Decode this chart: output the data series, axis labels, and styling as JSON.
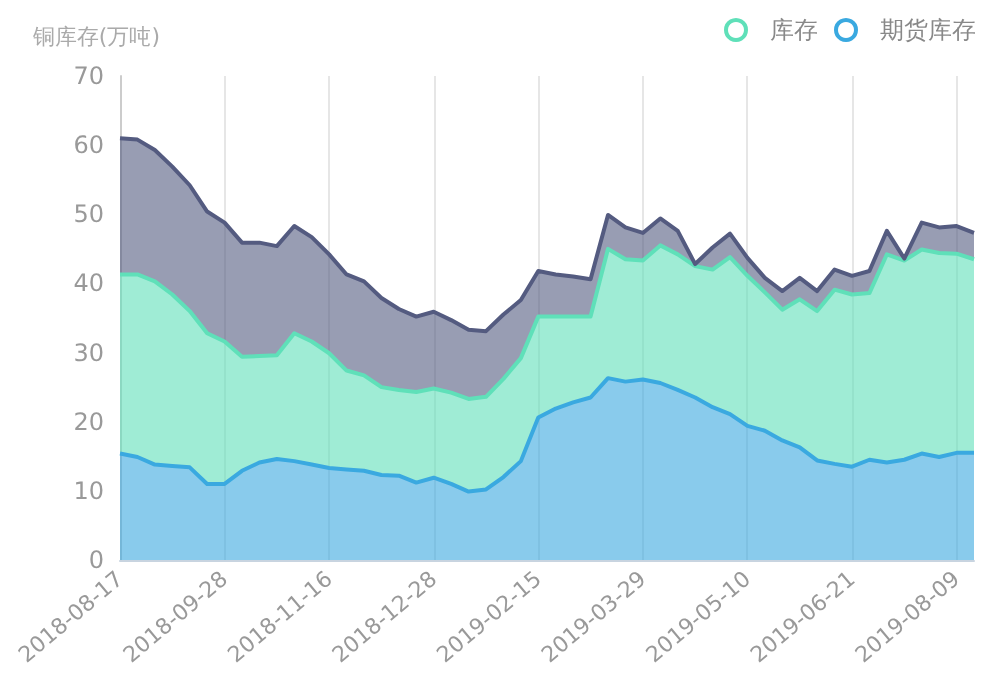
{
  "chart_data": {
    "type": "area",
    "stacked": true,
    "ylabel": "铜库存(万吨)",
    "categories": [
      "2018-08-17",
      null,
      null,
      null,
      null,
      null,
      "2018-09-28",
      null,
      null,
      null,
      null,
      null,
      "2018-11-16",
      null,
      null,
      null,
      null,
      null,
      "2018-12-28",
      null,
      null,
      null,
      null,
      null,
      "2019-02-15",
      null,
      null,
      null,
      null,
      null,
      "2019-03-29",
      null,
      null,
      null,
      null,
      null,
      "2019-05-10",
      null,
      null,
      null,
      null,
      null,
      "2019-06-21",
      null,
      null,
      null,
      null,
      null,
      "2019-08-09",
      null
    ],
    "series": [
      {
        "name": "期货库存",
        "color": "#3aa9e0",
        "values": [
          15.4,
          14.9,
          13.8,
          13.6,
          13.4,
          11.0,
          11.0,
          12.9,
          14.1,
          14.6,
          14.3,
          13.8,
          13.3,
          13.1,
          12.9,
          12.3,
          12.2,
          11.2,
          11.9,
          11.0,
          9.9,
          10.2,
          12.0,
          14.3,
          20.6,
          21.9,
          22.8,
          23.5,
          26.3,
          25.8,
          26.1,
          25.6,
          24.6,
          23.5,
          22.1,
          21.1,
          19.4,
          18.7,
          17.3,
          16.3,
          14.4,
          13.9,
          13.5,
          14.5,
          14.1,
          14.5,
          15.4,
          14.9,
          15.5,
          15.5
        ]
      },
      {
        "name": "库存",
        "color": "#5fe0b9",
        "values": [
          25.9,
          26.4,
          26.5,
          24.8,
          22.6,
          21.8,
          20.6,
          16.5,
          15.4,
          15.0,
          18.5,
          17.8,
          16.6,
          14.3,
          13.8,
          12.7,
          12.4,
          13.1,
          12.9,
          13.2,
          13.4,
          13.4,
          14.2,
          14.9,
          14.6,
          13.3,
          12.4,
          11.7,
          18.7,
          17.7,
          17.2,
          19.9,
          19.6,
          19.0,
          19.9,
          22.7,
          21.7,
          20.0,
          18.9,
          21.4,
          21.6,
          25.2,
          24.9,
          24.1,
          30.1,
          28.8,
          29.5,
          29.5,
          28.8,
          28.0
        ]
      },
      {
        "color": "#545b80",
        "values": [
          19.7,
          19.5,
          19.0,
          18.5,
          18.2,
          17.6,
          17.2,
          16.5,
          16.4,
          15.8,
          15.5,
          15.1,
          14.3,
          13.9,
          13.6,
          12.9,
          11.7,
          10.9,
          11.1,
          10.5,
          10.0,
          9.5,
          9.3,
          8.4,
          6.6,
          6.1,
          5.8,
          5.4,
          4.9,
          4.6,
          4.0,
          3.9,
          3.4,
          0.3,
          3.2,
          3.4,
          2.6,
          2.1,
          2.7,
          3.1,
          2.9,
          2.9,
          2.7,
          3.2,
          3.4,
          0.3,
          3.9,
          3.7,
          4.0,
          3.8
        ]
      }
    ],
    "ylim": [
      0,
      70
    ],
    "yticks": [
      0,
      10,
      20,
      30,
      40,
      50,
      60,
      70
    ],
    "grid": "x",
    "legend": "top right"
  }
}
